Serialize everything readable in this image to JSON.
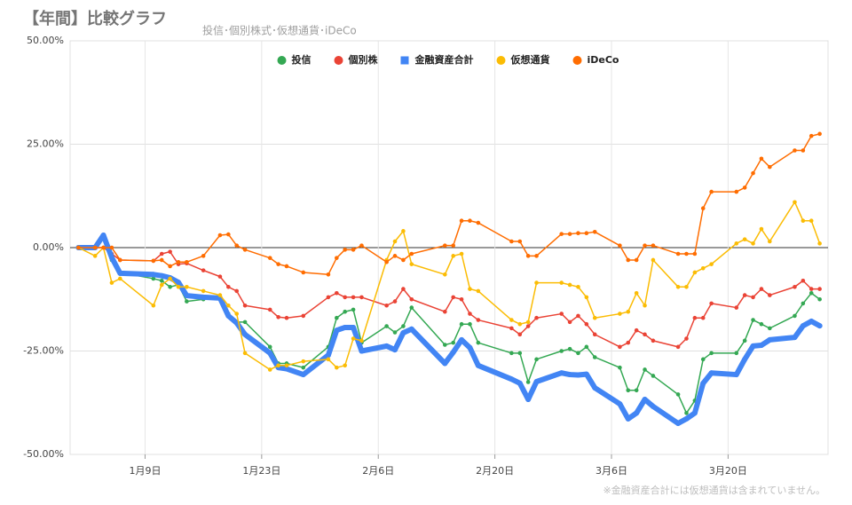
{
  "chart_data": {
    "type": "line",
    "title": "【年間】比較グラフ",
    "subtitle": "投信･個別株式･仮想通貨･iDeCo",
    "note": "※金融資産合計には仮想通貨は含まれていません。",
    "x": [
      1,
      3,
      4,
      5,
      6,
      10,
      11,
      12,
      13,
      14,
      16,
      18,
      19,
      20,
      21,
      24,
      25,
      26,
      28,
      31,
      32,
      33,
      34,
      35,
      38,
      39,
      40,
      41,
      45,
      46,
      47,
      48,
      49,
      53,
      54,
      55,
      56,
      59,
      60,
      61,
      62,
      63,
      66,
      67,
      68,
      69,
      70,
      73,
      74,
      75,
      76,
      77,
      80,
      81,
      82,
      83,
      84,
      87,
      88,
      89,
      90
    ],
    "xlim": [
      0,
      91
    ],
    "xticks": [
      {
        "value": 9,
        "label": "1月9日"
      },
      {
        "value": 23,
        "label": "1月23日"
      },
      {
        "value": 37,
        "label": "2月6日"
      },
      {
        "value": 51,
        "label": "2月20日"
      },
      {
        "value": 65,
        "label": "3月6日"
      },
      {
        "value": 79,
        "label": "3月20日"
      }
    ],
    "ylim": [
      -50,
      50
    ],
    "yticks": [
      {
        "value": -50,
        "label": "-50.00%"
      },
      {
        "value": -25,
        "label": "-25.00%"
      },
      {
        "value": 0,
        "label": "0.00%"
      },
      {
        "value": 25,
        "label": "25.00%"
      },
      {
        "value": 50,
        "label": "50.00%"
      }
    ],
    "grid": true,
    "legend": "top",
    "series": [
      {
        "name": "投信",
        "color": "#34a853",
        "width": 1.5,
        "values": [
          0,
          0,
          2.5,
          -3,
          -6,
          -7.5,
          -8,
          -9.5,
          -9,
          -13,
          -12.5,
          -12.5,
          -16,
          -18,
          -18,
          -24,
          -28,
          -28,
          -29,
          -24,
          -17,
          -15.5,
          -15,
          -23,
          -19,
          -20.5,
          -19,
          -14.5,
          -23.5,
          -23,
          -18.5,
          -18.5,
          -23,
          -25.5,
          -25.5,
          -32.5,
          -27,
          -25,
          -24.5,
          -25.5,
          -24,
          -26.5,
          -29,
          -34.5,
          -34.5,
          -29.5,
          -31,
          -35.5,
          -40,
          -37,
          -27,
          -25.5,
          -25.5,
          -22.5,
          -17.5,
          -18.5,
          -19.5,
          -16.5,
          -13.5,
          -11,
          -12.5
        ]
      },
      {
        "name": "個別株",
        "color": "#ea4335",
        "width": 1.5,
        "values": [
          0,
          0,
          0,
          -1.5,
          -3,
          -3.2,
          -1.5,
          -1,
          -4,
          -3.8,
          -5.5,
          -7,
          -9.5,
          -10.5,
          -14,
          -15,
          -16.8,
          -17,
          -16.5,
          -12,
          -11,
          -12,
          -12,
          -12,
          -14,
          -13,
          -10,
          -12.5,
          -15.5,
          -12,
          -12.5,
          -16,
          -17.5,
          -19.5,
          -21,
          -19,
          -17,
          -16,
          -18,
          -16.5,
          -18.5,
          -21,
          -24,
          -23,
          -20,
          -21,
          -22.5,
          -24,
          -22,
          -17,
          -17,
          -13.5,
          -14.5,
          -11.5,
          -12,
          -10,
          -11.5,
          -9.5,
          -8,
          -10,
          -10
        ]
      },
      {
        "name": "金融資産合計",
        "color": "#4285f4",
        "width": 6,
        "values": [
          0,
          0,
          3,
          -2.4,
          -6.2,
          -6.5,
          -6.8,
          -7.3,
          -8.4,
          -11.6,
          -12,
          -12.2,
          -16.5,
          -18.2,
          -21,
          -25.5,
          -29,
          -29.3,
          -30.7,
          -26,
          -20,
          -19.3,
          -19.3,
          -25,
          -23.8,
          -24.7,
          -20.6,
          -19.7,
          -28,
          -25.3,
          -22.3,
          -24.2,
          -28.5,
          -31.8,
          -32.8,
          -36.7,
          -32.4,
          -30.3,
          -30.7,
          -30.8,
          -30.6,
          -33.9,
          -37.8,
          -41.4,
          -40,
          -36.7,
          -38.4,
          -42.5,
          -41.4,
          -40,
          -32.8,
          -30.3,
          -30.7,
          -27,
          -23.8,
          -23.6,
          -22.3,
          -21.7,
          -18.9,
          -17.8,
          -18.9
        ]
      },
      {
        "name": "仮想通貨",
        "color": "#fbbc04",
        "width": 1.5,
        "values": [
          0,
          -2,
          0,
          -8.5,
          -7.5,
          -14,
          -9,
          -7.5,
          -9.5,
          -9.5,
          -10.5,
          -11.5,
          -14,
          -16,
          -25.5,
          -29.5,
          -28.5,
          -28.5,
          -27.5,
          -27,
          -29,
          -28.5,
          -22,
          -22.5,
          -3,
          1.5,
          4,
          -4,
          -6.5,
          -2,
          -1.5,
          -10,
          -10.5,
          -17.5,
          -18.5,
          -18,
          -8.5,
          -8.5,
          -9,
          -9.5,
          -12,
          -17,
          -16,
          -15.5,
          -11,
          -14,
          -3,
          -9.5,
          -9.5,
          -6,
          -5,
          -4,
          1,
          2,
          1,
          4.5,
          1.5,
          11,
          6.5,
          6.5,
          1
        ]
      },
      {
        "name": "iDeCo",
        "color": "#ff6d01",
        "width": 1.5,
        "values": [
          0,
          0,
          0,
          0,
          -3,
          -3.2,
          -3,
          -4.5,
          -3.5,
          -3.5,
          -2,
          3,
          3.2,
          0.5,
          -0.5,
          -2.5,
          -4,
          -4.5,
          -6,
          -6.5,
          -2.5,
          -0.5,
          -0.5,
          0.5,
          -3.5,
          -2,
          -3,
          -1.5,
          0.5,
          0.5,
          6.5,
          6.5,
          6,
          1.5,
          1.5,
          -2,
          -2,
          3.3,
          3.3,
          3.5,
          3.5,
          3.8,
          0.5,
          -3,
          -3,
          0.5,
          0.5,
          -1.5,
          -1.5,
          -1.5,
          9.5,
          13.5,
          13.5,
          14.5,
          18,
          21.5,
          19.5,
          23.5,
          23.5,
          27,
          27.5
        ]
      }
    ]
  }
}
